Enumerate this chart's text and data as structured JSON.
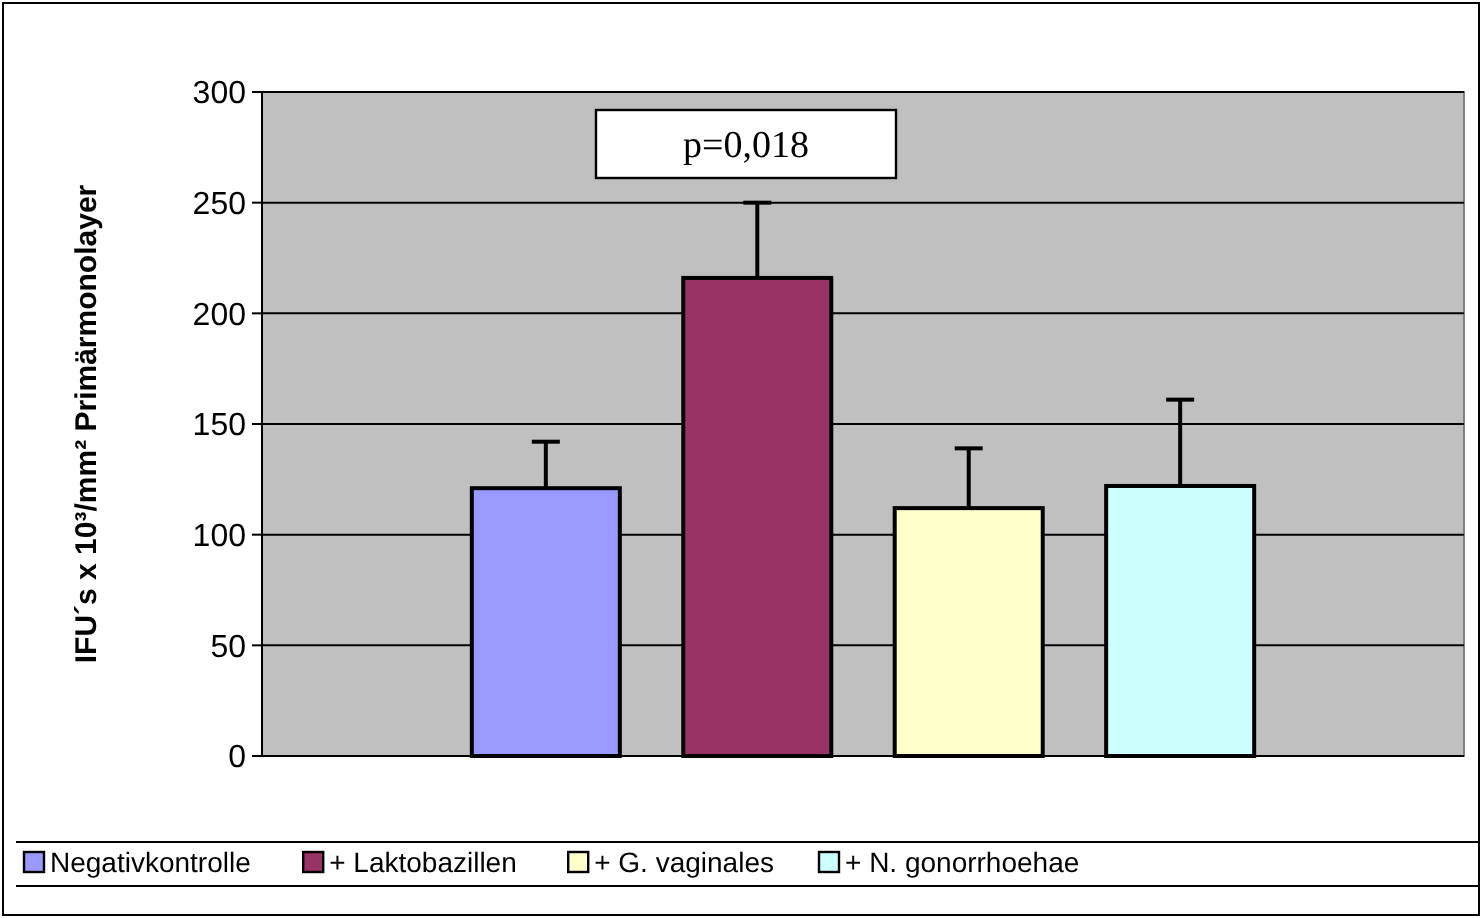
{
  "chart_data": {
    "type": "bar",
    "ylabel": "IFU´s x 10³/mm² Primärmonolayer",
    "categories": [
      null
    ],
    "series": [
      {
        "name": "Negativkontrolle",
        "color": "#9999ff",
        "values": [
          121
        ],
        "errors": [
          21
        ]
      },
      {
        "name": "+ Laktobazillen",
        "color": "#993366",
        "values": [
          216
        ],
        "errors": [
          34
        ]
      },
      {
        "name": "+ G. vaginales",
        "color": "#ffffcc",
        "values": [
          112
        ],
        "errors": [
          27
        ]
      },
      {
        "name": "+ N. gonorrhoehae",
        "color": "#ccffff",
        "values": [
          122
        ],
        "errors": [
          39
        ]
      }
    ],
    "annotations": [
      "p=0,018"
    ],
    "ylim": [
      0,
      300
    ],
    "yticks": [
      0,
      50,
      100,
      150,
      200,
      250,
      300
    ],
    "grid": "y",
    "legend": "bottom"
  }
}
